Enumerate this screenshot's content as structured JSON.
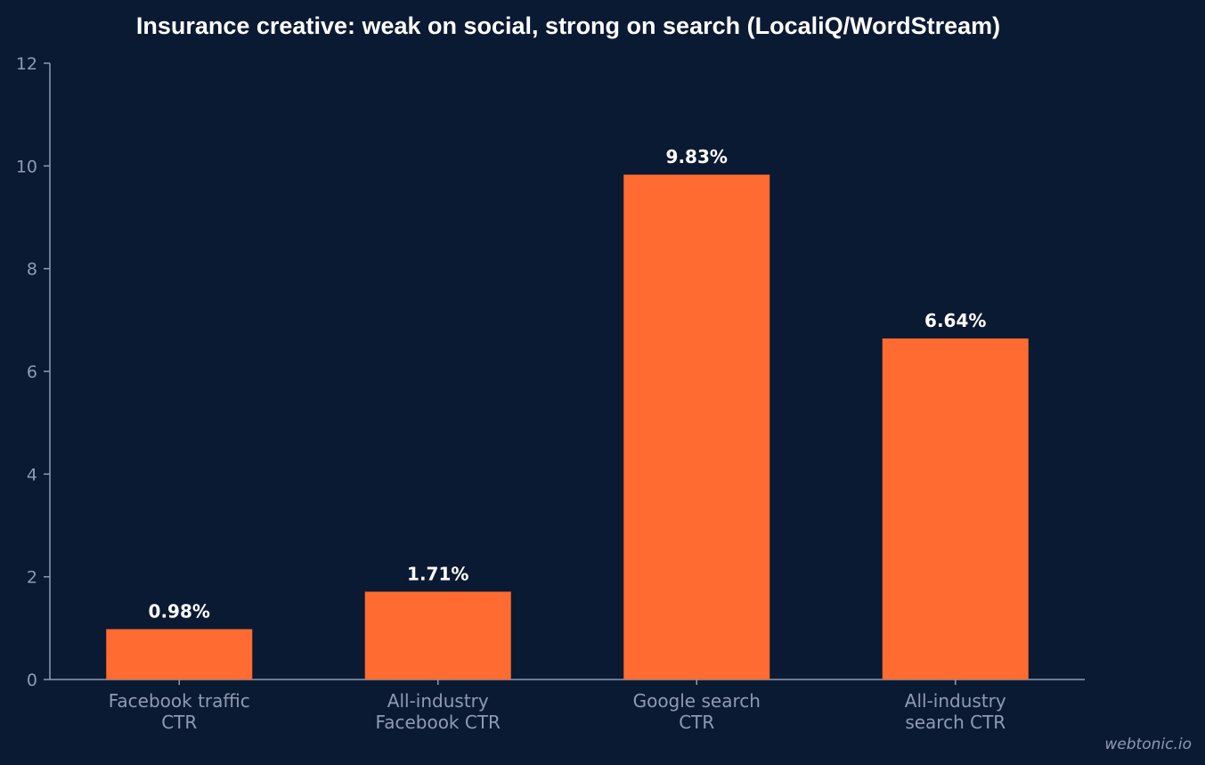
{
  "chart_data": {
    "type": "bar",
    "title": "Insurance creative: weak on social, strong on search (LocaliQ/WordStream)",
    "xlabel": "",
    "ylabel": "",
    "categories": [
      [
        "Facebook traffic",
        "CTR"
      ],
      [
        "All-industry",
        "Facebook CTR"
      ],
      [
        "Google search",
        "CTR"
      ],
      [
        "All-industry",
        "search CTR"
      ]
    ],
    "values": [
      0.98,
      1.71,
      9.83,
      6.64
    ],
    "data_labels": [
      "0.98%",
      "1.71%",
      "9.83%",
      "6.64%"
    ],
    "ylim": [
      0,
      12
    ],
    "yticks": [
      "0",
      "2",
      "4",
      "6",
      "8",
      "10",
      "12"
    ],
    "grid": false,
    "legend": "none",
    "colors": {
      "background": "#0b1a33",
      "bar": "#ff6b30",
      "axis": "#8e9bb2",
      "text": "#ffffff"
    }
  },
  "watermark": "webtonic.io"
}
